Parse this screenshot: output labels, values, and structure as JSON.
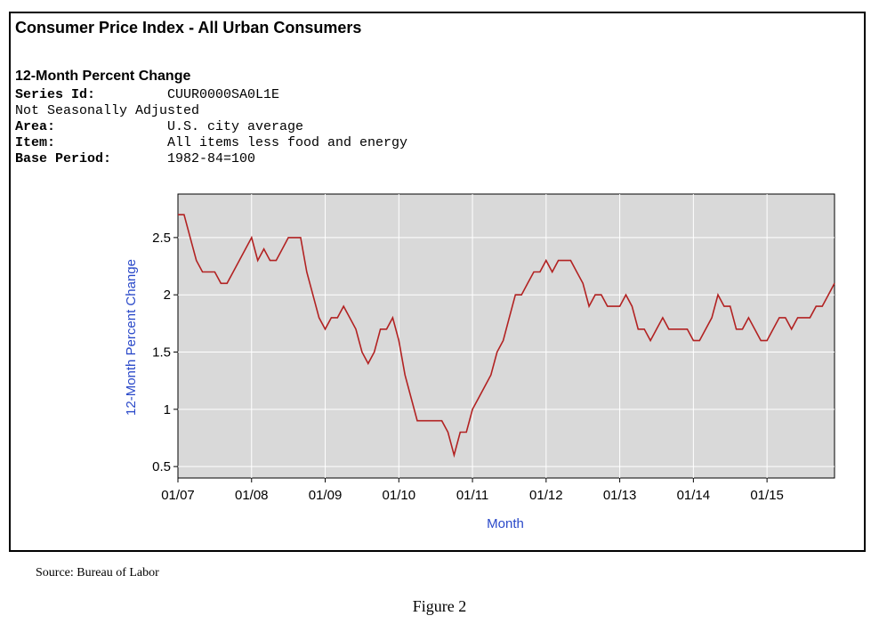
{
  "header": {
    "title": "Consumer Price Index - All Urban Consumers",
    "subtitle": "12-Month Percent Change",
    "series_id_label": "Series Id:",
    "series_id_value": "CUUR0000SA0L1E",
    "adjustment": "Not Seasonally Adjusted",
    "area_label": "Area:",
    "area_value": "U.S. city average",
    "item_label": "Item:",
    "item_value": "All items less food and energy",
    "base_label": "Base Period:",
    "base_value": "1982-84=100"
  },
  "footer": {
    "source": "Source: Bureau of Labor",
    "caption": "Figure 2"
  },
  "chart_data": {
    "type": "line",
    "xlabel": "Month",
    "ylabel": "12-Month Percent Change",
    "ylim": [
      0.4,
      2.88
    ],
    "yticks": [
      0.5,
      1,
      1.5,
      2,
      2.5
    ],
    "ytick_labels": [
      "0.5",
      "1",
      "1.5",
      "2",
      "2.5"
    ],
    "xticks": [
      "2007-01",
      "2008-01",
      "2009-01",
      "2010-01",
      "2011-01",
      "2012-01",
      "2013-01",
      "2014-01",
      "2015-01"
    ],
    "xtick_labels": [
      "01/07",
      "01/08",
      "01/09",
      "01/10",
      "01/11",
      "01/12",
      "01/13",
      "01/14",
      "01/15"
    ],
    "xlim": [
      "2007-01",
      "2015-12"
    ],
    "grid": true,
    "plot_background": "#d9d9d9",
    "series": [
      {
        "color": "#b22222",
        "start": "2007-01",
        "values": [
          2.7,
          2.7,
          2.5,
          2.3,
          2.2,
          2.2,
          2.2,
          2.1,
          2.1,
          2.2,
          2.3,
          2.4,
          2.5,
          2.3,
          2.4,
          2.3,
          2.3,
          2.4,
          2.5,
          2.5,
          2.5,
          2.2,
          2.0,
          1.8,
          1.7,
          1.8,
          1.8,
          1.9,
          1.8,
          1.7,
          1.5,
          1.4,
          1.5,
          1.7,
          1.7,
          1.8,
          1.6,
          1.3,
          1.1,
          0.9,
          0.9,
          0.9,
          0.9,
          0.9,
          0.8,
          0.6,
          0.8,
          0.8,
          1.0,
          1.1,
          1.2,
          1.3,
          1.5,
          1.6,
          1.8,
          2.0,
          2.0,
          2.1,
          2.2,
          2.2,
          2.3,
          2.2,
          2.3,
          2.3,
          2.3,
          2.2,
          2.1,
          1.9,
          2.0,
          2.0,
          1.9,
          1.9,
          1.9,
          2.0,
          1.9,
          1.7,
          1.7,
          1.6,
          1.7,
          1.8,
          1.7,
          1.7,
          1.7,
          1.7,
          1.6,
          1.6,
          1.7,
          1.8,
          2.0,
          1.9,
          1.9,
          1.7,
          1.7,
          1.8,
          1.7,
          1.6,
          1.6,
          1.7,
          1.8,
          1.8,
          1.7,
          1.8,
          1.8,
          1.8,
          1.9,
          1.9,
          2.0,
          2.1
        ]
      }
    ]
  }
}
